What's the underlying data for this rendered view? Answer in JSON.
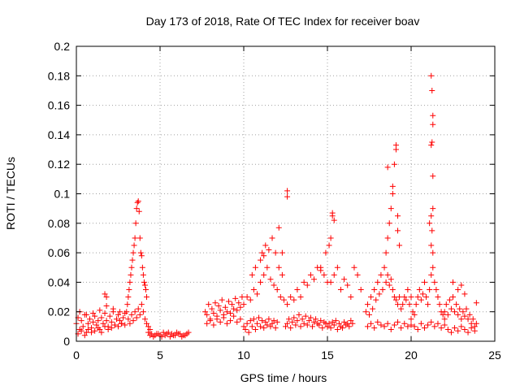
{
  "chart_data": {
    "type": "scatter",
    "title": "Day 173 of 2018, Rate Of TEC Index for receiver boav",
    "xlabel": "GPS time / hours",
    "ylabel": "ROTI / TECUs",
    "xlim": [
      0,
      25
    ],
    "ylim": [
      0,
      0.2
    ],
    "x_ticks": [
      0,
      5,
      10,
      15,
      20,
      25
    ],
    "x_tick_labels": [
      "0",
      "5",
      "10",
      "15",
      "20",
      "25"
    ],
    "y_ticks": [
      0,
      0.02,
      0.04,
      0.06,
      0.08,
      0.1,
      0.12,
      0.14,
      0.16,
      0.18,
      0.2
    ],
    "y_tick_labels": [
      "0",
      "0.02",
      "0.04",
      "0.06",
      "0.08",
      "0.1",
      "0.12",
      "0.14",
      "0.16",
      "0.18",
      "0.2"
    ],
    "grid": true,
    "marker": "+",
    "color": "#ff0000",
    "series": [
      {
        "x": [
          0.0,
          0.1,
          0.2,
          0.3,
          0.4,
          0.5,
          0.6,
          0.7,
          0.8,
          0.9,
          1.0,
          1.1,
          1.2,
          1.3,
          1.4,
          1.5,
          1.6,
          1.7,
          1.8,
          1.9,
          2.0,
          2.1,
          2.2,
          2.3,
          2.4,
          2.5,
          2.6,
          2.7,
          2.8,
          2.9,
          0.1,
          0.3,
          0.5,
          0.7,
          0.9,
          1.1,
          1.3,
          1.5,
          1.7,
          1.9,
          2.1,
          2.3,
          2.5,
          2.7,
          2.9,
          0.2,
          0.6,
          1.0,
          1.4,
          1.8,
          2.2,
          2.6,
          1.7,
          1.8,
          3.0,
          3.05,
          3.1,
          3.15,
          3.2,
          3.25,
          3.3,
          3.35,
          3.4,
          3.45,
          3.5,
          3.55,
          3.6,
          3.65,
          3.7,
          3.75,
          3.8,
          3.85,
          3.9,
          3.95,
          4.0,
          4.05,
          4.1,
          4.15,
          4.2,
          3.1,
          3.2,
          3.3,
          3.4,
          3.5,
          3.6,
          3.7,
          3.8,
          3.9,
          4.0,
          4.1,
          4.2,
          4.3,
          4.4,
          4.3,
          4.5,
          4.7,
          4.9,
          5.1,
          5.3,
          5.5,
          5.7,
          5.9,
          6.1,
          6.3,
          6.5,
          6.7,
          4.4,
          4.6,
          4.8,
          5.0,
          5.2,
          5.4,
          5.6,
          5.8,
          6.0,
          6.2,
          6.4,
          6.6,
          7.7,
          7.8,
          7.9,
          8.0,
          8.1,
          8.2,
          8.3,
          8.4,
          8.5,
          8.6,
          8.7,
          8.8,
          8.9,
          9.0,
          9.1,
          9.2,
          9.3,
          9.4,
          9.5,
          9.6,
          9.7,
          9.8,
          9.9,
          7.8,
          8.0,
          8.2,
          8.4,
          8.6,
          8.8,
          9.0,
          9.2,
          9.4,
          9.6,
          9.8,
          10.0,
          10.1,
          10.2,
          10.3,
          10.4,
          10.5,
          10.6,
          10.7,
          10.8,
          10.9,
          11.0,
          11.1,
          11.2,
          11.3,
          11.4,
          11.5,
          11.6,
          11.7,
          11.8,
          11.9,
          12.0,
          10.0,
          10.2,
          10.4,
          10.6,
          10.8,
          11.0,
          11.2,
          11.4,
          11.6,
          11.8,
          12.0,
          12.2,
          12.4,
          10.5,
          10.7,
          11.0,
          11.1,
          11.2,
          11.3,
          11.5,
          11.7,
          11.9,
          12.1,
          12.3,
          12.5,
          12.6,
          12.7,
          12.8,
          12.9,
          13.0,
          13.1,
          13.2,
          13.3,
          13.4,
          13.5,
          13.6,
          13.7,
          13.8,
          13.9,
          14.0,
          14.1,
          14.2,
          14.3,
          14.4,
          14.5,
          14.6,
          14.7,
          14.8,
          14.9,
          15.0,
          12.6,
          12.8,
          13.0,
          13.2,
          13.4,
          13.6,
          13.8,
          14.0,
          14.2,
          14.4,
          14.6,
          14.8,
          15.0,
          12.1,
          12.3,
          12.6,
          12.6,
          15.0,
          15.1,
          15.2,
          15.3,
          15.4,
          15.5,
          15.6,
          15.7,
          15.8,
          15.9,
          16.0,
          16.1,
          16.2,
          16.3,
          16.4,
          16.5,
          15.3,
          15.3,
          15.4,
          15.2,
          15.1,
          14.9,
          14.6,
          15.2,
          15.4,
          15.6,
          15.8,
          16.0,
          16.2,
          16.4,
          16.6,
          16.8,
          17.0,
          17.3,
          17.4,
          17.5,
          17.6,
          17.7,
          17.8,
          17.9,
          18.0,
          18.1,
          18.2,
          18.3,
          18.4,
          18.5,
          18.6,
          18.7,
          18.8,
          18.9,
          19.0,
          19.1,
          19.2,
          19.3,
          19.4,
          19.5,
          19.6,
          19.7,
          19.8,
          19.9,
          20.0,
          17.4,
          17.6,
          17.8,
          18.0,
          18.2,
          18.4,
          18.6,
          18.8,
          19.0,
          19.2,
          19.4,
          19.6,
          19.8,
          20.0,
          18.5,
          18.6,
          18.7,
          18.8,
          18.9,
          19.0,
          19.1,
          19.2,
          19.3,
          18.6,
          18.9,
          19.1,
          19.2,
          20.0,
          20.1,
          20.2,
          20.3,
          20.4,
          20.5,
          20.6,
          20.7,
          20.8,
          20.9,
          21.0,
          21.1,
          21.2,
          21.3,
          21.4,
          21.5,
          21.6,
          21.7,
          21.8,
          21.9,
          22.0,
          20.2,
          20.4,
          20.6,
          20.8,
          21.0,
          21.2,
          21.4,
          21.6,
          21.8,
          22.0,
          21.2,
          21.25,
          21.3,
          21.3,
          21.25,
          21.2,
          21.3,
          21.3,
          21.2,
          21.1,
          21.25,
          21.2,
          21.3,
          22.0,
          22.1,
          22.2,
          22.3,
          22.4,
          22.5,
          22.6,
          22.7,
          22.8,
          22.9,
          23.0,
          23.1,
          23.2,
          23.3,
          23.4,
          23.5,
          23.6,
          23.7,
          23.8,
          23.9,
          22.2,
          22.4,
          22.6,
          22.8,
          23.0,
          23.2,
          23.4,
          23.6,
          23.8,
          22.5,
          22.8,
          23.0,
          23.2,
          23.9
        ],
        "y": [
          0.012,
          0.016,
          0.008,
          0.014,
          0.01,
          0.018,
          0.006,
          0.012,
          0.015,
          0.009,
          0.013,
          0.017,
          0.011,
          0.014,
          0.008,
          0.016,
          0.012,
          0.019,
          0.014,
          0.01,
          0.017,
          0.013,
          0.02,
          0.011,
          0.015,
          0.018,
          0.014,
          0.012,
          0.016,
          0.019,
          0.005,
          0.007,
          0.004,
          0.008,
          0.006,
          0.007,
          0.009,
          0.006,
          0.01,
          0.008,
          0.009,
          0.011,
          0.01,
          0.012,
          0.011,
          0.02,
          0.018,
          0.019,
          0.021,
          0.024,
          0.022,
          0.02,
          0.032,
          0.03,
          0.02,
          0.025,
          0.03,
          0.035,
          0.04,
          0.045,
          0.05,
          0.055,
          0.06,
          0.065,
          0.07,
          0.08,
          0.09,
          0.094,
          0.095,
          0.088,
          0.07,
          0.06,
          0.058,
          0.05,
          0.045,
          0.04,
          0.038,
          0.035,
          0.03,
          0.015,
          0.012,
          0.018,
          0.014,
          0.02,
          0.016,
          0.022,
          0.018,
          0.025,
          0.02,
          0.015,
          0.012,
          0.01,
          0.008,
          0.006,
          0.005,
          0.004,
          0.005,
          0.003,
          0.004,
          0.006,
          0.005,
          0.004,
          0.005,
          0.003,
          0.004,
          0.006,
          0.004,
          0.003,
          0.005,
          0.004,
          0.006,
          0.005,
          0.003,
          0.004,
          0.006,
          0.005,
          0.004,
          0.005,
          0.02,
          0.018,
          0.025,
          0.015,
          0.022,
          0.019,
          0.026,
          0.017,
          0.024,
          0.021,
          0.028,
          0.018,
          0.023,
          0.02,
          0.027,
          0.019,
          0.025,
          0.022,
          0.029,
          0.021,
          0.026,
          0.023,
          0.03,
          0.012,
          0.014,
          0.011,
          0.015,
          0.013,
          0.016,
          0.012,
          0.014,
          0.017,
          0.013,
          0.015,
          0.01,
          0.008,
          0.012,
          0.006,
          0.014,
          0.01,
          0.015,
          0.008,
          0.012,
          0.016,
          0.01,
          0.014,
          0.009,
          0.013,
          0.011,
          0.015,
          0.01,
          0.012,
          0.014,
          0.009,
          0.013,
          0.025,
          0.03,
          0.028,
          0.035,
          0.032,
          0.04,
          0.045,
          0.05,
          0.042,
          0.038,
          0.035,
          0.03,
          0.028,
          0.045,
          0.05,
          0.055,
          0.06,
          0.058,
          0.065,
          0.062,
          0.07,
          0.06,
          0.05,
          0.045,
          0.01,
          0.012,
          0.015,
          0.009,
          0.013,
          0.016,
          0.011,
          0.014,
          0.018,
          0.01,
          0.015,
          0.012,
          0.017,
          0.011,
          0.014,
          0.016,
          0.01,
          0.013,
          0.015,
          0.012,
          0.011,
          0.014,
          0.009,
          0.013,
          0.012,
          0.01,
          0.025,
          0.03,
          0.028,
          0.035,
          0.03,
          0.04,
          0.038,
          0.045,
          0.042,
          0.05,
          0.048,
          0.045,
          0.04,
          0.077,
          0.06,
          0.102,
          0.098,
          0.01,
          0.012,
          0.009,
          0.013,
          0.011,
          0.014,
          0.008,
          0.012,
          0.01,
          0.009,
          0.013,
          0.011,
          0.012,
          0.01,
          0.014,
          0.012,
          0.087,
          0.085,
          0.082,
          0.07,
          0.065,
          0.06,
          0.05,
          0.04,
          0.045,
          0.05,
          0.035,
          0.042,
          0.038,
          0.03,
          0.05,
          0.045,
          0.035,
          0.02,
          0.025,
          0.018,
          0.03,
          0.022,
          0.035,
          0.028,
          0.04,
          0.032,
          0.045,
          0.035,
          0.05,
          0.04,
          0.045,
          0.038,
          0.042,
          0.035,
          0.03,
          0.028,
          0.025,
          0.03,
          0.022,
          0.025,
          0.03,
          0.028,
          0.035,
          0.025,
          0.03,
          0.01,
          0.012,
          0.009,
          0.013,
          0.011,
          0.01,
          0.012,
          0.008,
          0.011,
          0.013,
          0.009,
          0.012,
          0.01,
          0.011,
          0.06,
          0.07,
          0.08,
          0.09,
          0.105,
          0.12,
          0.13,
          0.075,
          0.065,
          0.118,
          0.1,
          0.133,
          0.085,
          0.015,
          0.02,
          0.018,
          0.025,
          0.03,
          0.035,
          0.028,
          0.032,
          0.04,
          0.03,
          0.025,
          0.035,
          0.045,
          0.05,
          0.04,
          0.035,
          0.03,
          0.025,
          0.02,
          0.018,
          0.015,
          0.01,
          0.008,
          0.012,
          0.009,
          0.011,
          0.013,
          0.01,
          0.012,
          0.009,
          0.011,
          0.18,
          0.17,
          0.153,
          0.147,
          0.135,
          0.133,
          0.112,
          0.09,
          0.085,
          0.08,
          0.075,
          0.065,
          0.06,
          0.02,
          0.025,
          0.018,
          0.028,
          0.022,
          0.03,
          0.02,
          0.025,
          0.018,
          0.022,
          0.015,
          0.02,
          0.017,
          0.022,
          0.015,
          0.018,
          0.012,
          0.015,
          0.01,
          0.012,
          0.008,
          0.006,
          0.009,
          0.007,
          0.01,
          0.008,
          0.006,
          0.009,
          0.007,
          0.04,
          0.035,
          0.038,
          0.032,
          0.026
        ]
      }
    ]
  }
}
